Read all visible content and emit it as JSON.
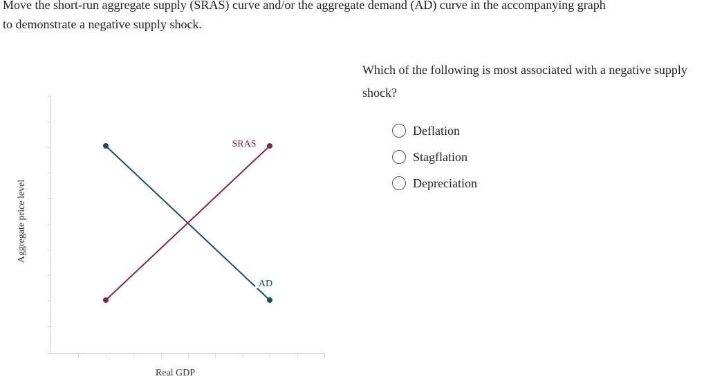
{
  "prompt": {
    "line1": "Move the short-run aggregate supply (SRAS) curve and/or the aggregate demand (AD) curve in the accompanying graph",
    "line2": "to demonstrate a negative supply shock."
  },
  "graph": {
    "y_axis_label": "Aggregate price level",
    "x_axis_label": "Real GDP",
    "curves": [
      {
        "name": "SRAS",
        "label": "SRAS",
        "color": "#8b2244"
      },
      {
        "name": "AD",
        "label": "AD",
        "color": "#124e70"
      }
    ]
  },
  "question": {
    "text": "Which of the following is most associated with a negative supply shock?",
    "options": [
      "Deflation",
      "Stagflation",
      "Depreciation"
    ]
  }
}
